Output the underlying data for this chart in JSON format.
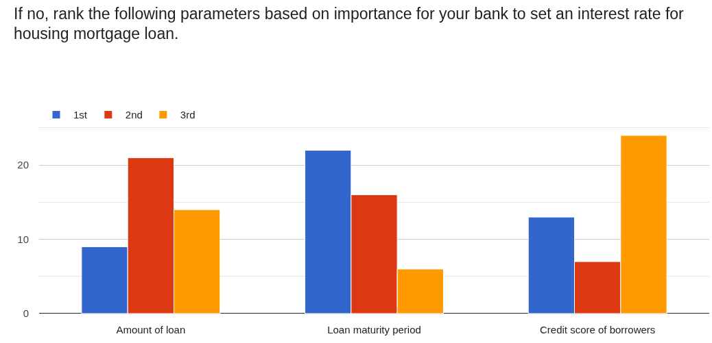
{
  "chart_data": {
    "type": "bar",
    "title": "If no, rank the following parameters based on importance for your bank to set an interest rate for housing mortgage loan.",
    "categories": [
      "Amount of loan",
      "Loan maturity period",
      "Credit score of borrowers"
    ],
    "series": [
      {
        "name": "1st",
        "color": "#3366cc",
        "values": [
          9,
          22,
          13
        ]
      },
      {
        "name": "2nd",
        "color": "#dc3912",
        "values": [
          21,
          16,
          7
        ]
      },
      {
        "name": "3rd",
        "color": "#ff9900",
        "values": [
          14,
          6,
          24
        ]
      }
    ],
    "ylim": [
      0,
      25
    ],
    "yticks": [
      0,
      {
        "value": 5,
        "label": null
      },
      10,
      {
        "value": 15,
        "label": null
      },
      20,
      {
        "value": 25,
        "label": null
      }
    ],
    "grid": "y",
    "legend": "top left"
  }
}
